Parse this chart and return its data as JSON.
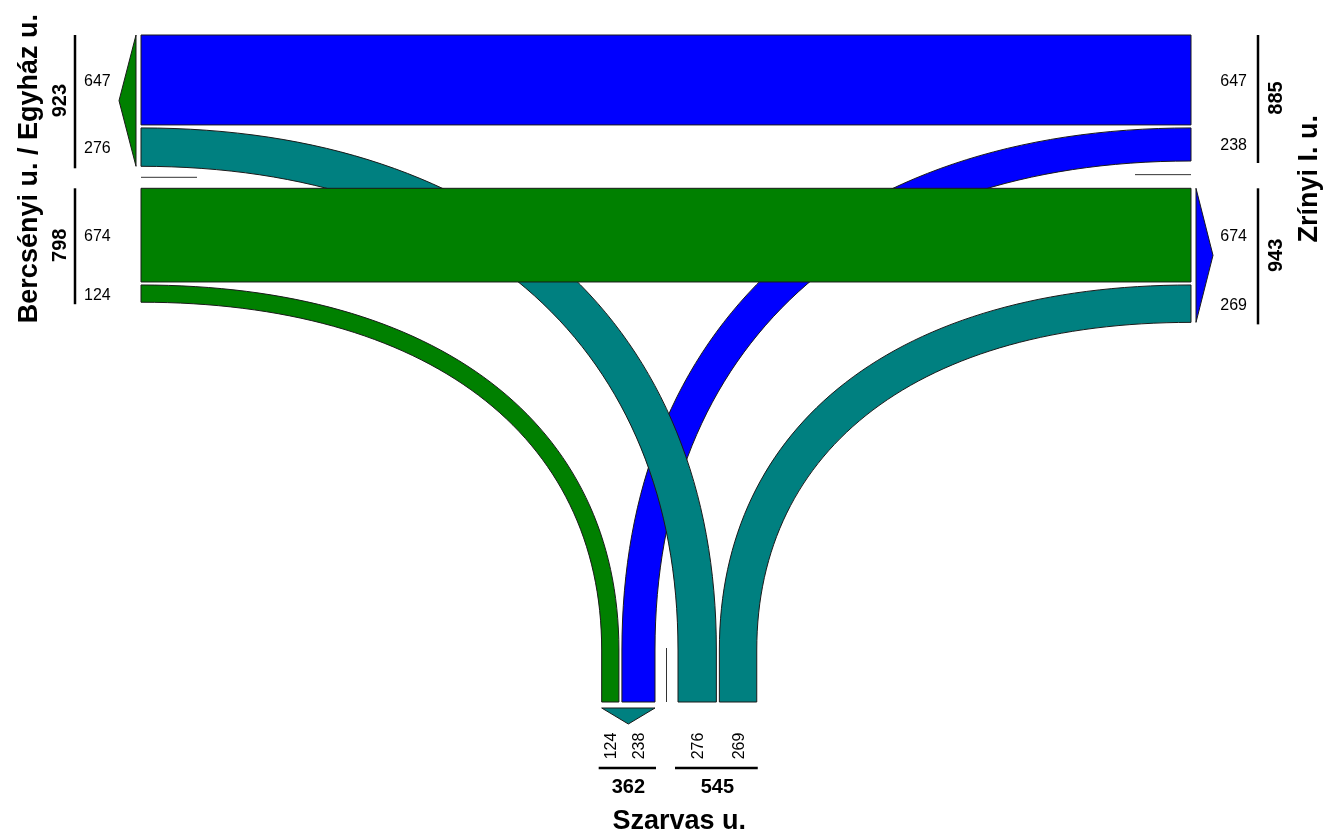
{
  "chart_data": {
    "type": "other",
    "categories": [
      "Bercsényi u. / Egyház u.",
      "Zrínyi I. u.",
      "Szarvas u."
    ],
    "series": [
      {
        "color": "#008000",
        "values": [
          null,
          674,
          124
        ]
      },
      {
        "color": "#0000ff",
        "values": [
          647,
          null,
          238
        ]
      },
      {
        "color": "#008080",
        "values": [
          276,
          269,
          null
        ]
      }
    ],
    "annotations": [
      "647",
      "276",
      "674",
      "269",
      "124",
      "238"
    ],
    "totals": [
      "923",
      "798",
      "885",
      "943",
      "362",
      "545"
    ],
    "data_labels": true
  }
}
